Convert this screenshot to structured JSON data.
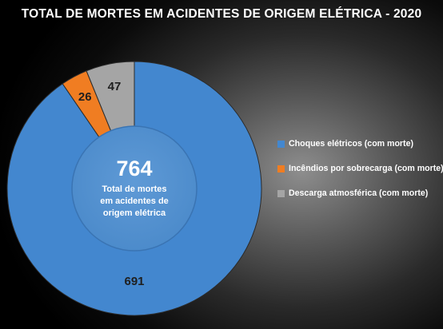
{
  "chart_data": {
    "type": "pie",
    "variant": "donut",
    "title": "TOTAL DE MORTES EM ACIDENTES DE ORIGEM ELÉTRICA - 2020",
    "categories": [
      "Choques elétricos (com morte)",
      "Incêndios por sobrecarga (com morte)",
      "Descarga atmosférica (com morte)"
    ],
    "values": [
      691,
      26,
      47
    ],
    "colors": [
      "#4387cf",
      "#f07d22",
      "#a5a5a5"
    ],
    "center_total": "764",
    "center_caption": [
      "Total de mortes",
      "em acidentes de",
      "origem elétrica"
    ],
    "legend_position": "right"
  }
}
